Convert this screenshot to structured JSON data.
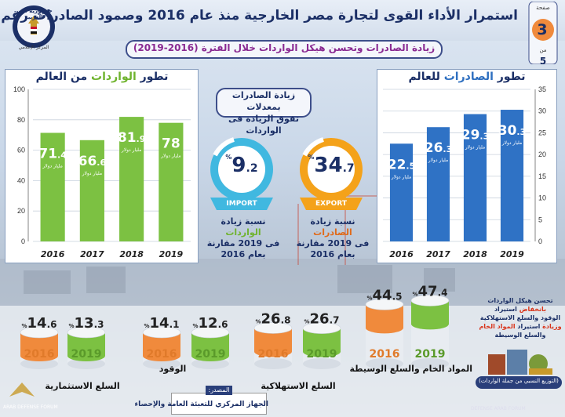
{
  "header": {
    "title": "استمرار الأداء القوى لتجارة مصر الخارجية منذ عام 2016 وصمود الصادرات رغم أزمة كورونا",
    "subtitle": "زيادة الصادرات وتحسن هيكل الواردات خلال الفترة (2016-2019)",
    "logo_top": "جمهورية مصر العربية",
    "logo_bottom": "المركز الإعلامي",
    "page_label": "صفحة",
    "page_number": "3",
    "of_label": "من",
    "page_total": "5"
  },
  "colors": {
    "imports_green": "#7cc142",
    "exports_blue": "#2f72c5",
    "navy": "#1b2f66",
    "orange": "#f08a3c",
    "export_badge": "#f4a21a",
    "import_badge": "#40b8e0"
  },
  "chart_data": [
    {
      "type": "bar",
      "title_prefix": "تطور",
      "title_highlight": "الواردات",
      "title_suffix": "من العالم",
      "categories": [
        "2016",
        "2017",
        "2018",
        "2019"
      ],
      "values": [
        71.4,
        66.6,
        81.9,
        78
      ],
      "value_text": [
        [
          "71",
          ".4"
        ],
        [
          "66",
          ".6"
        ],
        [
          "81",
          ".9"
        ],
        [
          "78",
          ""
        ]
      ],
      "unit_label": "مليار دولار",
      "yticks": [
        0,
        20,
        40,
        60,
        80,
        100
      ],
      "ylim": [
        0,
        100
      ],
      "grid": true
    },
    {
      "type": "bar",
      "title_prefix": "تطور",
      "title_highlight": "الصادرات",
      "title_suffix": "للعالم",
      "categories": [
        "2016",
        "2017",
        "2018",
        "2019"
      ],
      "values": [
        22.5,
        26.3,
        29.3,
        30.3
      ],
      "value_text": [
        [
          "22",
          ".5"
        ],
        [
          "26",
          ".3"
        ],
        [
          "29",
          ".3"
        ],
        [
          "30",
          ".3"
        ]
      ],
      "unit_label": "مليار دولار",
      "yticks": [
        0,
        5,
        10,
        15,
        20,
        25,
        30,
        35
      ],
      "ylim": [
        0,
        35
      ],
      "grid": true
    },
    {
      "type": "bar",
      "series": [
        {
          "name": "المواد الخام والسلع الوسيطة",
          "categories": [
            "2016",
            "2019"
          ],
          "values": [
            44.5,
            47.4
          ],
          "value_text": [
            [
              "44",
              ".5"
            ],
            [
              "47",
              ".4"
            ]
          ]
        },
        {
          "name": "السلع الاستهلاكية",
          "categories": [
            "2016",
            "2019"
          ],
          "values": [
            26.8,
            26.7
          ],
          "value_text": [
            [
              "26",
              ".8"
            ],
            [
              "26",
              ".7"
            ]
          ]
        },
        {
          "name": "الوقود",
          "categories": [
            "2016",
            "2019"
          ],
          "values": [
            14.1,
            12.6
          ],
          "value_text": [
            [
              "14",
              ".1"
            ],
            [
              "12",
              ".6"
            ]
          ]
        },
        {
          "name": "السلع الاستثمارية",
          "categories": [
            "2016",
            "2019"
          ],
          "values": [
            14.6,
            13.3
          ],
          "value_text": [
            [
              "14",
              ".6"
            ],
            [
              "13",
              ".3"
            ]
          ]
        }
      ],
      "unit": "%"
    }
  ],
  "middle": {
    "heading_line1": "زيادة الصادرات بمعدلات",
    "heading_line2": "تفوق الزيادة فى الواردات",
    "pct_sign": "%",
    "export": {
      "int": "34",
      "dec": ".7",
      "badge": "EXPORT",
      "desc_prefix": "نسبة زيادة",
      "desc_highlight": "الصادرات",
      "desc_line2": "فى 2019 مقارنة",
      "desc_line3": "بعام 2016"
    },
    "import": {
      "int": "9",
      "dec": ".2",
      "badge": "IMPORT",
      "desc_prefix": "نسبة زيادة",
      "desc_highlight": "الواردات",
      "desc_line2": "فى 2019 مقارنة",
      "desc_line3": "بعام 2016"
    }
  },
  "note": {
    "line1": "تحسن هيكل الواردات",
    "line1_red": "بانخفاض",
    "line1_b": "استيراد",
    "line2": "الوقود والسلع الاستهلاكية",
    "line3_red": "وزيادة",
    "line3": "استيراد",
    "line3_b": "المواد الخام",
    "line4": "والسلع الوسيطة",
    "footer": "(التوزيع النسبي من جملة الواردات)"
  },
  "source": {
    "label": "المصدر:",
    "text": "الجهاز المركزي للتعبئة العامة والإحصاء"
  },
  "watermark": {
    "left": "ARAB DEFENSE FORUM",
    "right": "DEFENSE ARAB FORUM"
  }
}
